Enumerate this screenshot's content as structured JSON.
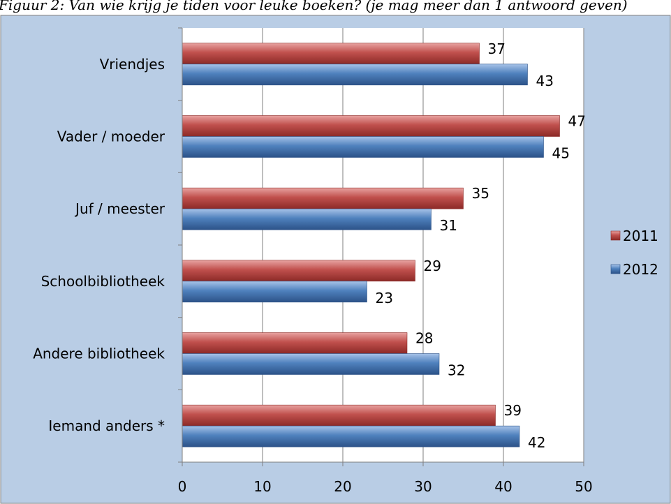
{
  "caption": "Figuur 2: Van wie krijg je tiden voor leuke boeken? (je mag meer dan 1 antwoord geven)",
  "chart_data": {
    "type": "bar",
    "orientation": "horizontal",
    "categories": [
      "Vriendjes",
      "Vader / moeder",
      "Juf / meester",
      "Schoolbibliotheek",
      "Andere bibliotheek",
      "Iemand anders *"
    ],
    "series": [
      {
        "name": "2011",
        "values": [
          37,
          47,
          35,
          29,
          28,
          39
        ]
      },
      {
        "name": "2012",
        "values": [
          43,
          45,
          31,
          23,
          32,
          42
        ]
      }
    ],
    "x_ticks": [
      0,
      10,
      20,
      30,
      40,
      50
    ],
    "xlim": [
      0,
      50
    ],
    "grid": true,
    "legend_position": "right",
    "colors": {
      "2011": "#c0504d",
      "2012": "#4f81bd",
      "background": "#b9cde5",
      "plot_area": "#ffffff"
    }
  }
}
